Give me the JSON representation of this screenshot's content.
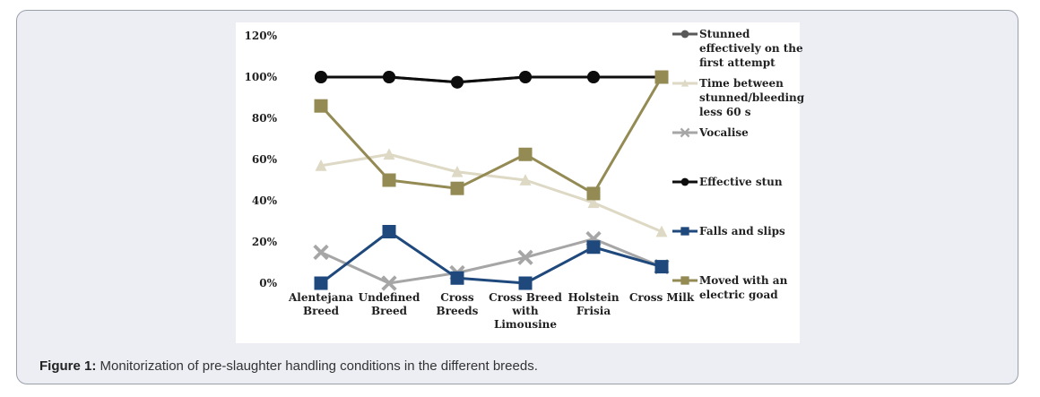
{
  "caption": {
    "label": "Figure 1:",
    "text": " Monitorization of pre-slaughter handling conditions in the different breeds."
  },
  "chart_data": {
    "type": "line",
    "categories": [
      [
        "Alentejana",
        "Breed"
      ],
      [
        "Undefined",
        "Breed"
      ],
      [
        "Cross",
        "Breeds"
      ],
      [
        "Cross Breed",
        "with",
        "Limousine"
      ],
      [
        "Holstein",
        "Frisia"
      ],
      [
        "Cross Milk"
      ]
    ],
    "ylim": [
      0,
      120
    ],
    "yticks": [
      0,
      20,
      40,
      60,
      80,
      100,
      120
    ],
    "ytick_labels": [
      "0%",
      "20%",
      "40%",
      "60%",
      "80%",
      "100%",
      "120%"
    ],
    "series": [
      {
        "name": [
          "Stunned",
          "effectively on the",
          "first attempt"
        ],
        "color": "#595959",
        "marker": "circle",
        "values": [
          100,
          100,
          97.5,
          100,
          100,
          100
        ]
      },
      {
        "name": [
          "Time between",
          "stunned/bleeding",
          "less 60 s"
        ],
        "color": "#ddd9c4",
        "marker": "triangle",
        "values": [
          57,
          62.5,
          54,
          50,
          39,
          25
        ]
      },
      {
        "name": [
          "Vocalise"
        ],
        "color": "#a6a6a6",
        "marker": "x",
        "values": [
          15,
          0,
          5,
          12.5,
          21.5,
          8
        ]
      },
      {
        "name": [
          "Effective stun"
        ],
        "color": "#0d0d0d",
        "marker": "circle",
        "values": [
          100,
          100,
          97.5,
          100,
          100,
          100
        ]
      },
      {
        "name": [
          "Falls and slips"
        ],
        "color": "#1f497d",
        "marker": "square",
        "values": [
          0,
          25,
          2.5,
          0,
          17.5,
          8
        ]
      },
      {
        "name": [
          "Moved with an",
          "electric goad"
        ],
        "color": "#948a54",
        "marker": "square",
        "values": [
          86,
          50,
          46,
          62.5,
          43.5,
          100
        ]
      }
    ]
  }
}
